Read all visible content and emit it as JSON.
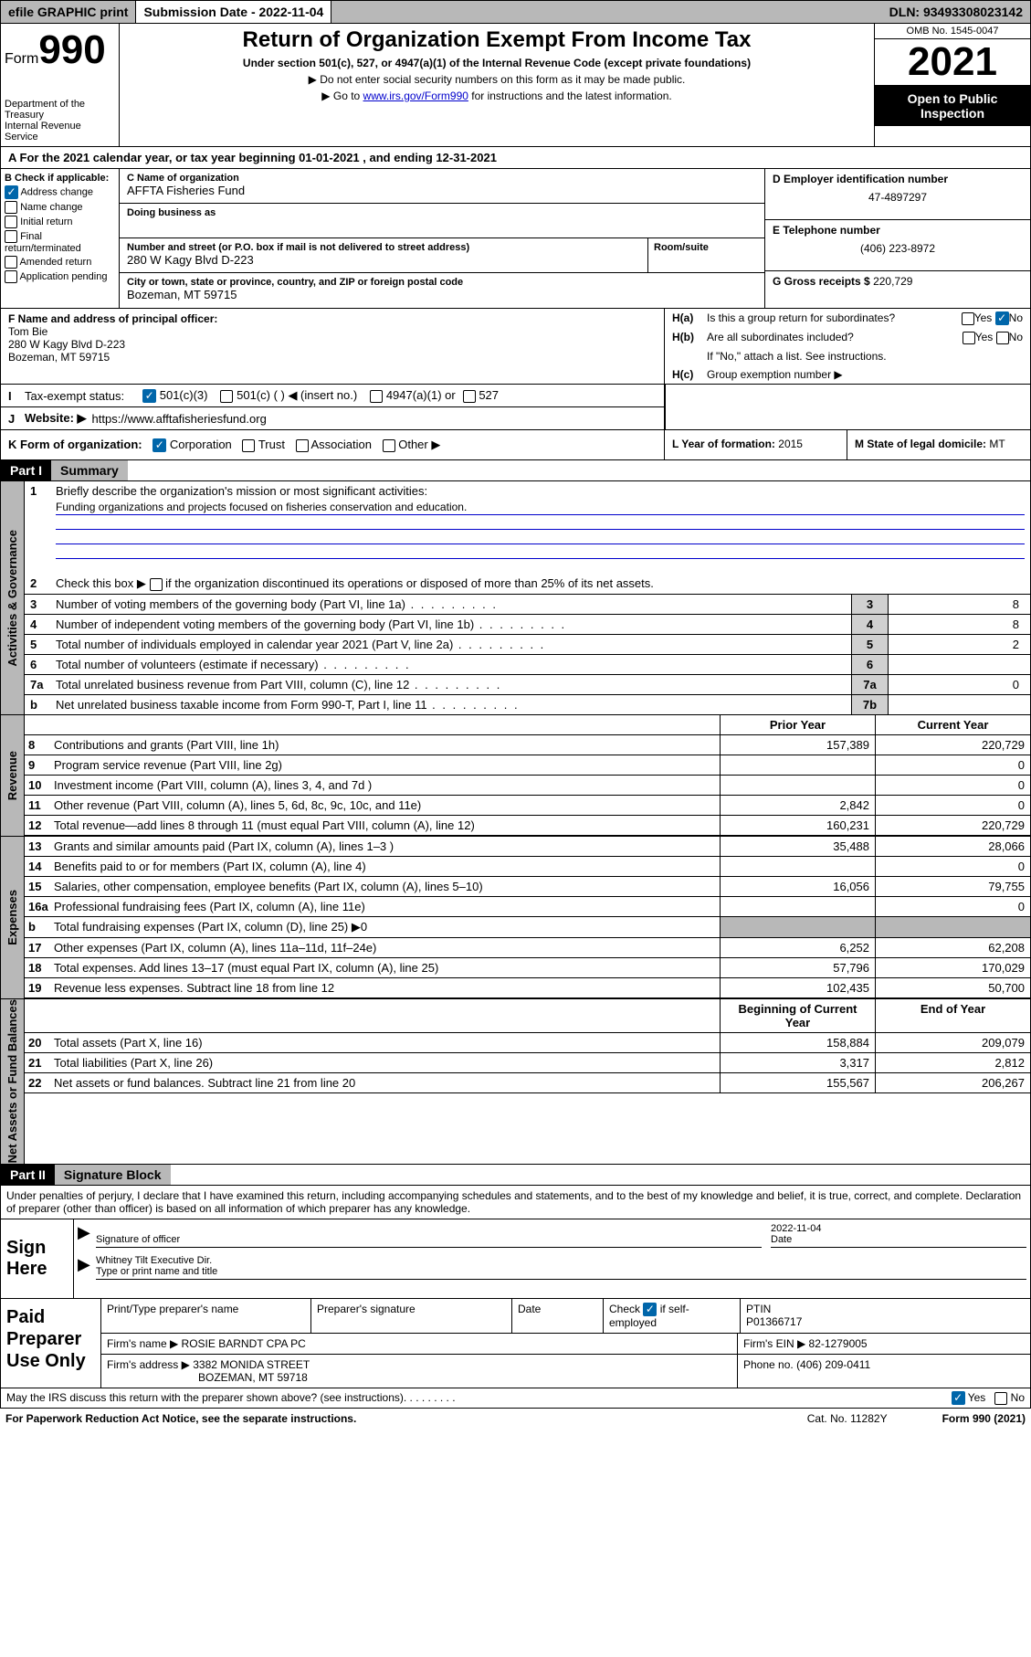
{
  "topbar": {
    "efile": "efile GRAPHIC print",
    "submission_label": "Submission Date - 2022-11-04",
    "dln": "DLN: 93493308023142"
  },
  "header": {
    "form_label": "Form",
    "form_number": "990",
    "dept": "Department of the Treasury",
    "irs": "Internal Revenue Service",
    "title": "Return of Organization Exempt From Income Tax",
    "subtitle": "Under section 501(c), 527, or 4947(a)(1) of the Internal Revenue Code (except private foundations)",
    "note1": "▶ Do not enter social security numbers on this form as it may be made public.",
    "note2_pre": "▶ Go to ",
    "note2_link": "www.irs.gov/Form990",
    "note2_post": " for instructions and the latest information.",
    "omb": "OMB No. 1545-0047",
    "year": "2021",
    "inspection": "Open to Public Inspection"
  },
  "section_a": {
    "tax_year": "For the 2021 calendar year, or tax year beginning 01-01-2021   , and ending 12-31-2021",
    "b_label": "B Check if applicable:",
    "b_options": [
      "Address change",
      "Name change",
      "Initial return",
      "Final return/terminated",
      "Amended return",
      "Application pending"
    ],
    "c_name_label": "C Name of organization",
    "c_name": "AFFTA Fisheries Fund",
    "dba_label": "Doing business as",
    "dba": "",
    "addr_label": "Number and street (or P.O. box if mail is not delivered to street address)",
    "room_label": "Room/suite",
    "addr": "280 W Kagy Blvd D-223",
    "city_label": "City or town, state or province, country, and ZIP or foreign postal code",
    "city": "Bozeman, MT  59715",
    "d_label": "D Employer identification number",
    "d_value": "47-4897297",
    "e_label": "E Telephone number",
    "e_value": "(406) 223-8972",
    "g_label": "G Gross receipts $",
    "g_value": "220,729",
    "f_label": "F  Name and address of principal officer:",
    "f_name": "Tom Bie",
    "f_addr1": "280 W Kagy Blvd D-223",
    "f_addr2": "Bozeman, MT  59715",
    "ha_label": "Is this a group return for subordinates?",
    "hb_label": "Are all subordinates included?",
    "hb_note": "If \"No,\" attach a list. See instructions.",
    "hc_label": "Group exemption number ▶",
    "i_label": "Tax-exempt status:",
    "i_501c3": "501(c)(3)",
    "i_501c": "501(c) (  ) ◀ (insert no.)",
    "i_4947": "4947(a)(1) or",
    "i_527": "527",
    "j_label": "Website: ▶",
    "j_value": "https://www.afftafisheriesfund.org",
    "k_label": "K Form of organization:",
    "k_opts": [
      "Corporation",
      "Trust",
      "Association",
      "Other ▶"
    ],
    "l_label": "L Year of formation:",
    "l_value": "2015",
    "m_label": "M State of legal domicile:",
    "m_value": "MT"
  },
  "part1": {
    "header": "Part I",
    "title": "Summary",
    "vtab_gov": "Activities & Governance",
    "vtab_rev": "Revenue",
    "vtab_exp": "Expenses",
    "vtab_net": "Net Assets or Fund Balances",
    "line1_label": "Briefly describe the organization's mission or most significant activities:",
    "line1_text": "Funding organizations and projects focused on fisheries conservation and education.",
    "line2_label": "Check this box ▶",
    "line2_text": "if the organization discontinued its operations or disposed of more than 25% of its net assets.",
    "lines_gov": [
      {
        "n": "3",
        "desc": "Number of voting members of the governing body (Part VI, line 1a)",
        "cell": "3",
        "val": "8"
      },
      {
        "n": "4",
        "desc": "Number of independent voting members of the governing body (Part VI, line 1b)",
        "cell": "4",
        "val": "8"
      },
      {
        "n": "5",
        "desc": "Total number of individuals employed in calendar year 2021 (Part V, line 2a)",
        "cell": "5",
        "val": "2"
      },
      {
        "n": "6",
        "desc": "Total number of volunteers (estimate if necessary)",
        "cell": "6",
        "val": ""
      },
      {
        "n": "7a",
        "desc": "Total unrelated business revenue from Part VIII, column (C), line 12",
        "cell": "7a",
        "val": "0"
      },
      {
        "n": "b",
        "desc": "Net unrelated business taxable income from Form 990-T, Part I, line 11",
        "cell": "7b",
        "val": ""
      }
    ],
    "py_hdr": "Prior Year",
    "cy_hdr": "Current Year",
    "lines_rev": [
      {
        "n": "8",
        "desc": "Contributions and grants (Part VIII, line 1h)",
        "py": "157,389",
        "cy": "220,729"
      },
      {
        "n": "9",
        "desc": "Program service revenue (Part VIII, line 2g)",
        "py": "",
        "cy": "0"
      },
      {
        "n": "10",
        "desc": "Investment income (Part VIII, column (A), lines 3, 4, and 7d )",
        "py": "",
        "cy": "0"
      },
      {
        "n": "11",
        "desc": "Other revenue (Part VIII, column (A), lines 5, 6d, 8c, 9c, 10c, and 11e)",
        "py": "2,842",
        "cy": "0"
      },
      {
        "n": "12",
        "desc": "Total revenue—add lines 8 through 11 (must equal Part VIII, column (A), line 12)",
        "py": "160,231",
        "cy": "220,729"
      }
    ],
    "lines_exp": [
      {
        "n": "13",
        "desc": "Grants and similar amounts paid (Part IX, column (A), lines 1–3 )",
        "py": "35,488",
        "cy": "28,066"
      },
      {
        "n": "14",
        "desc": "Benefits paid to or for members (Part IX, column (A), line 4)",
        "py": "",
        "cy": "0"
      },
      {
        "n": "15",
        "desc": "Salaries, other compensation, employee benefits (Part IX, column (A), lines 5–10)",
        "py": "16,056",
        "cy": "79,755"
      },
      {
        "n": "16a",
        "desc": "Professional fundraising fees (Part IX, column (A), line 11e)",
        "py": "",
        "cy": "0"
      },
      {
        "n": "b",
        "desc": "Total fundraising expenses (Part IX, column (D), line 25) ▶0",
        "py": "SHADE",
        "cy": "SHADE"
      },
      {
        "n": "17",
        "desc": "Other expenses (Part IX, column (A), lines 11a–11d, 11f–24e)",
        "py": "6,252",
        "cy": "62,208"
      },
      {
        "n": "18",
        "desc": "Total expenses. Add lines 13–17 (must equal Part IX, column (A), line 25)",
        "py": "57,796",
        "cy": "170,029"
      },
      {
        "n": "19",
        "desc": "Revenue less expenses. Subtract line 18 from line 12",
        "py": "102,435",
        "cy": "50,700"
      }
    ],
    "by_hdr": "Beginning of Current Year",
    "ey_hdr": "End of Year",
    "lines_net": [
      {
        "n": "20",
        "desc": "Total assets (Part X, line 16)",
        "py": "158,884",
        "cy": "209,079"
      },
      {
        "n": "21",
        "desc": "Total liabilities (Part X, line 26)",
        "py": "3,317",
        "cy": "2,812"
      },
      {
        "n": "22",
        "desc": "Net assets or fund balances. Subtract line 21 from line 20",
        "py": "155,567",
        "cy": "206,267"
      }
    ]
  },
  "part2": {
    "header": "Part II",
    "title": "Signature Block",
    "declaration": "Under penalties of perjury, I declare that I have examined this return, including accompanying schedules and statements, and to the best of my knowledge and belief, it is true, correct, and complete. Declaration of preparer (other than officer) is based on all information of which preparer has any knowledge.",
    "sign_here": "Sign Here",
    "sig_officer": "Signature of officer",
    "sig_date_val": "2022-11-04",
    "sig_date_lbl": "Date",
    "sig_name": "Whitney Tilt Executive Dir.",
    "sig_name_lbl": "Type or print name and title",
    "paid": "Paid Preparer Use Only",
    "prep_name_lbl": "Print/Type preparer's name",
    "prep_sig_lbl": "Preparer's signature",
    "prep_date_lbl": "Date",
    "prep_check_lbl": "Check",
    "prep_self": "if self-employed",
    "ptin_lbl": "PTIN",
    "ptin_val": "P01366717",
    "firm_name_lbl": "Firm's name    ▶",
    "firm_name": "ROSIE BARNDT CPA PC",
    "firm_ein_lbl": "Firm's EIN ▶",
    "firm_ein": "82-1279005",
    "firm_addr_lbl": "Firm's address ▶",
    "firm_addr1": "3382 MONIDA STREET",
    "firm_addr2": "BOZEMAN, MT  59718",
    "phone_lbl": "Phone no.",
    "phone": "(406) 209-0411",
    "discuss": "May the IRS discuss this return with the preparer shown above? (see instructions)",
    "yes": "Yes",
    "no": "No"
  },
  "footer": {
    "paperwork": "For Paperwork Reduction Act Notice, see the separate instructions.",
    "cat": "Cat. No. 11282Y",
    "form": "Form 990 (2021)"
  },
  "colors": {
    "gray_bg": "#b8b8b8",
    "black": "#000000",
    "link": "#0000cc",
    "check_blue": "#0066aa"
  }
}
